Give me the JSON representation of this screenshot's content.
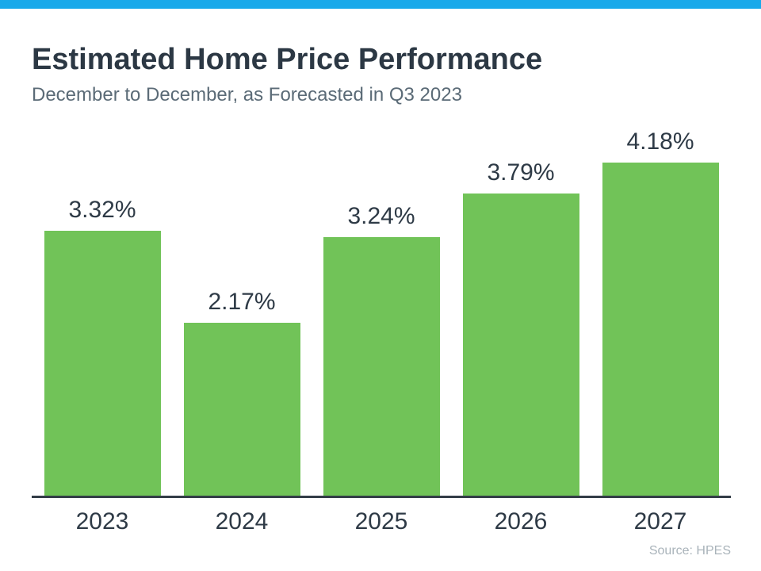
{
  "page": {
    "background_color": "#FFFFFF",
    "top_bar_color": "#18A9EA"
  },
  "header": {
    "title": "Estimated Home Price Performance",
    "subtitle": "December to December, as Forecasted in Q3 2023"
  },
  "source_label": "Source: HPES",
  "chart_data": {
    "type": "bar",
    "title": "Estimated Home Price Performance",
    "subtitle": "December to December, as Forecasted in Q3 2023",
    "categories": [
      "2023",
      "2024",
      "2025",
      "2026",
      "2027"
    ],
    "values": [
      3.32,
      2.17,
      3.24,
      3.79,
      4.18
    ],
    "value_labels": [
      "3.32%",
      "2.17%",
      "3.24%",
      "3.79%",
      "4.18%"
    ],
    "xlabel": "",
    "ylabel": "",
    "ylim": [
      0,
      4.6
    ],
    "grid": false,
    "legend": false,
    "bar_color": "#71C358",
    "text_color": "#2E3A46",
    "axis_line_color": "#333D47",
    "source": "Source: HPES"
  }
}
